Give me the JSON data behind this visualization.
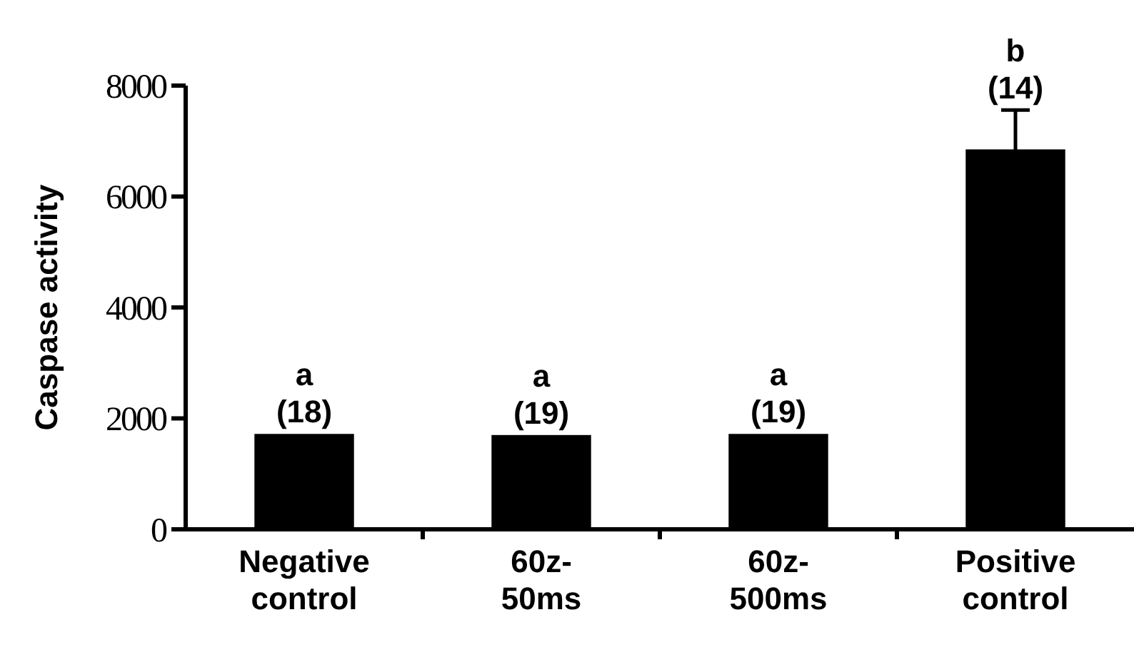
{
  "chart_data": {
    "type": "bar",
    "ylabel": "Caspase activity",
    "categories": [
      "Negative control",
      "60z-50ms",
      "60z-500ms",
      "Positive control"
    ],
    "values": [
      1720,
      1700,
      1720,
      6850
    ],
    "color": "#000000",
    "errors": [
      null,
      null,
      null,
      710
    ],
    "ylim": [
      0,
      8000
    ],
    "yticks": [
      0,
      2000,
      4000,
      6000,
      8000
    ],
    "grid": false,
    "annotations": [
      {
        "text": "a",
        "x": "Negative control",
        "y": 1720
      },
      {
        "text": "(18)",
        "x": "Negative control",
        "y": 1720
      },
      {
        "text": "a",
        "x": "60z-50ms",
        "y": 1700
      },
      {
        "text": "(19)",
        "x": "60z-50ms",
        "y": 1700
      },
      {
        "text": "a",
        "x": "60z-500ms",
        "y": 1720
      },
      {
        "text": "(19)",
        "x": "60z-500ms",
        "y": 1720
      },
      {
        "text": "b",
        "x": "Positive control",
        "y": 7560
      },
      {
        "text": "(14)",
        "x": "Positive control",
        "y": 7560
      }
    ]
  }
}
